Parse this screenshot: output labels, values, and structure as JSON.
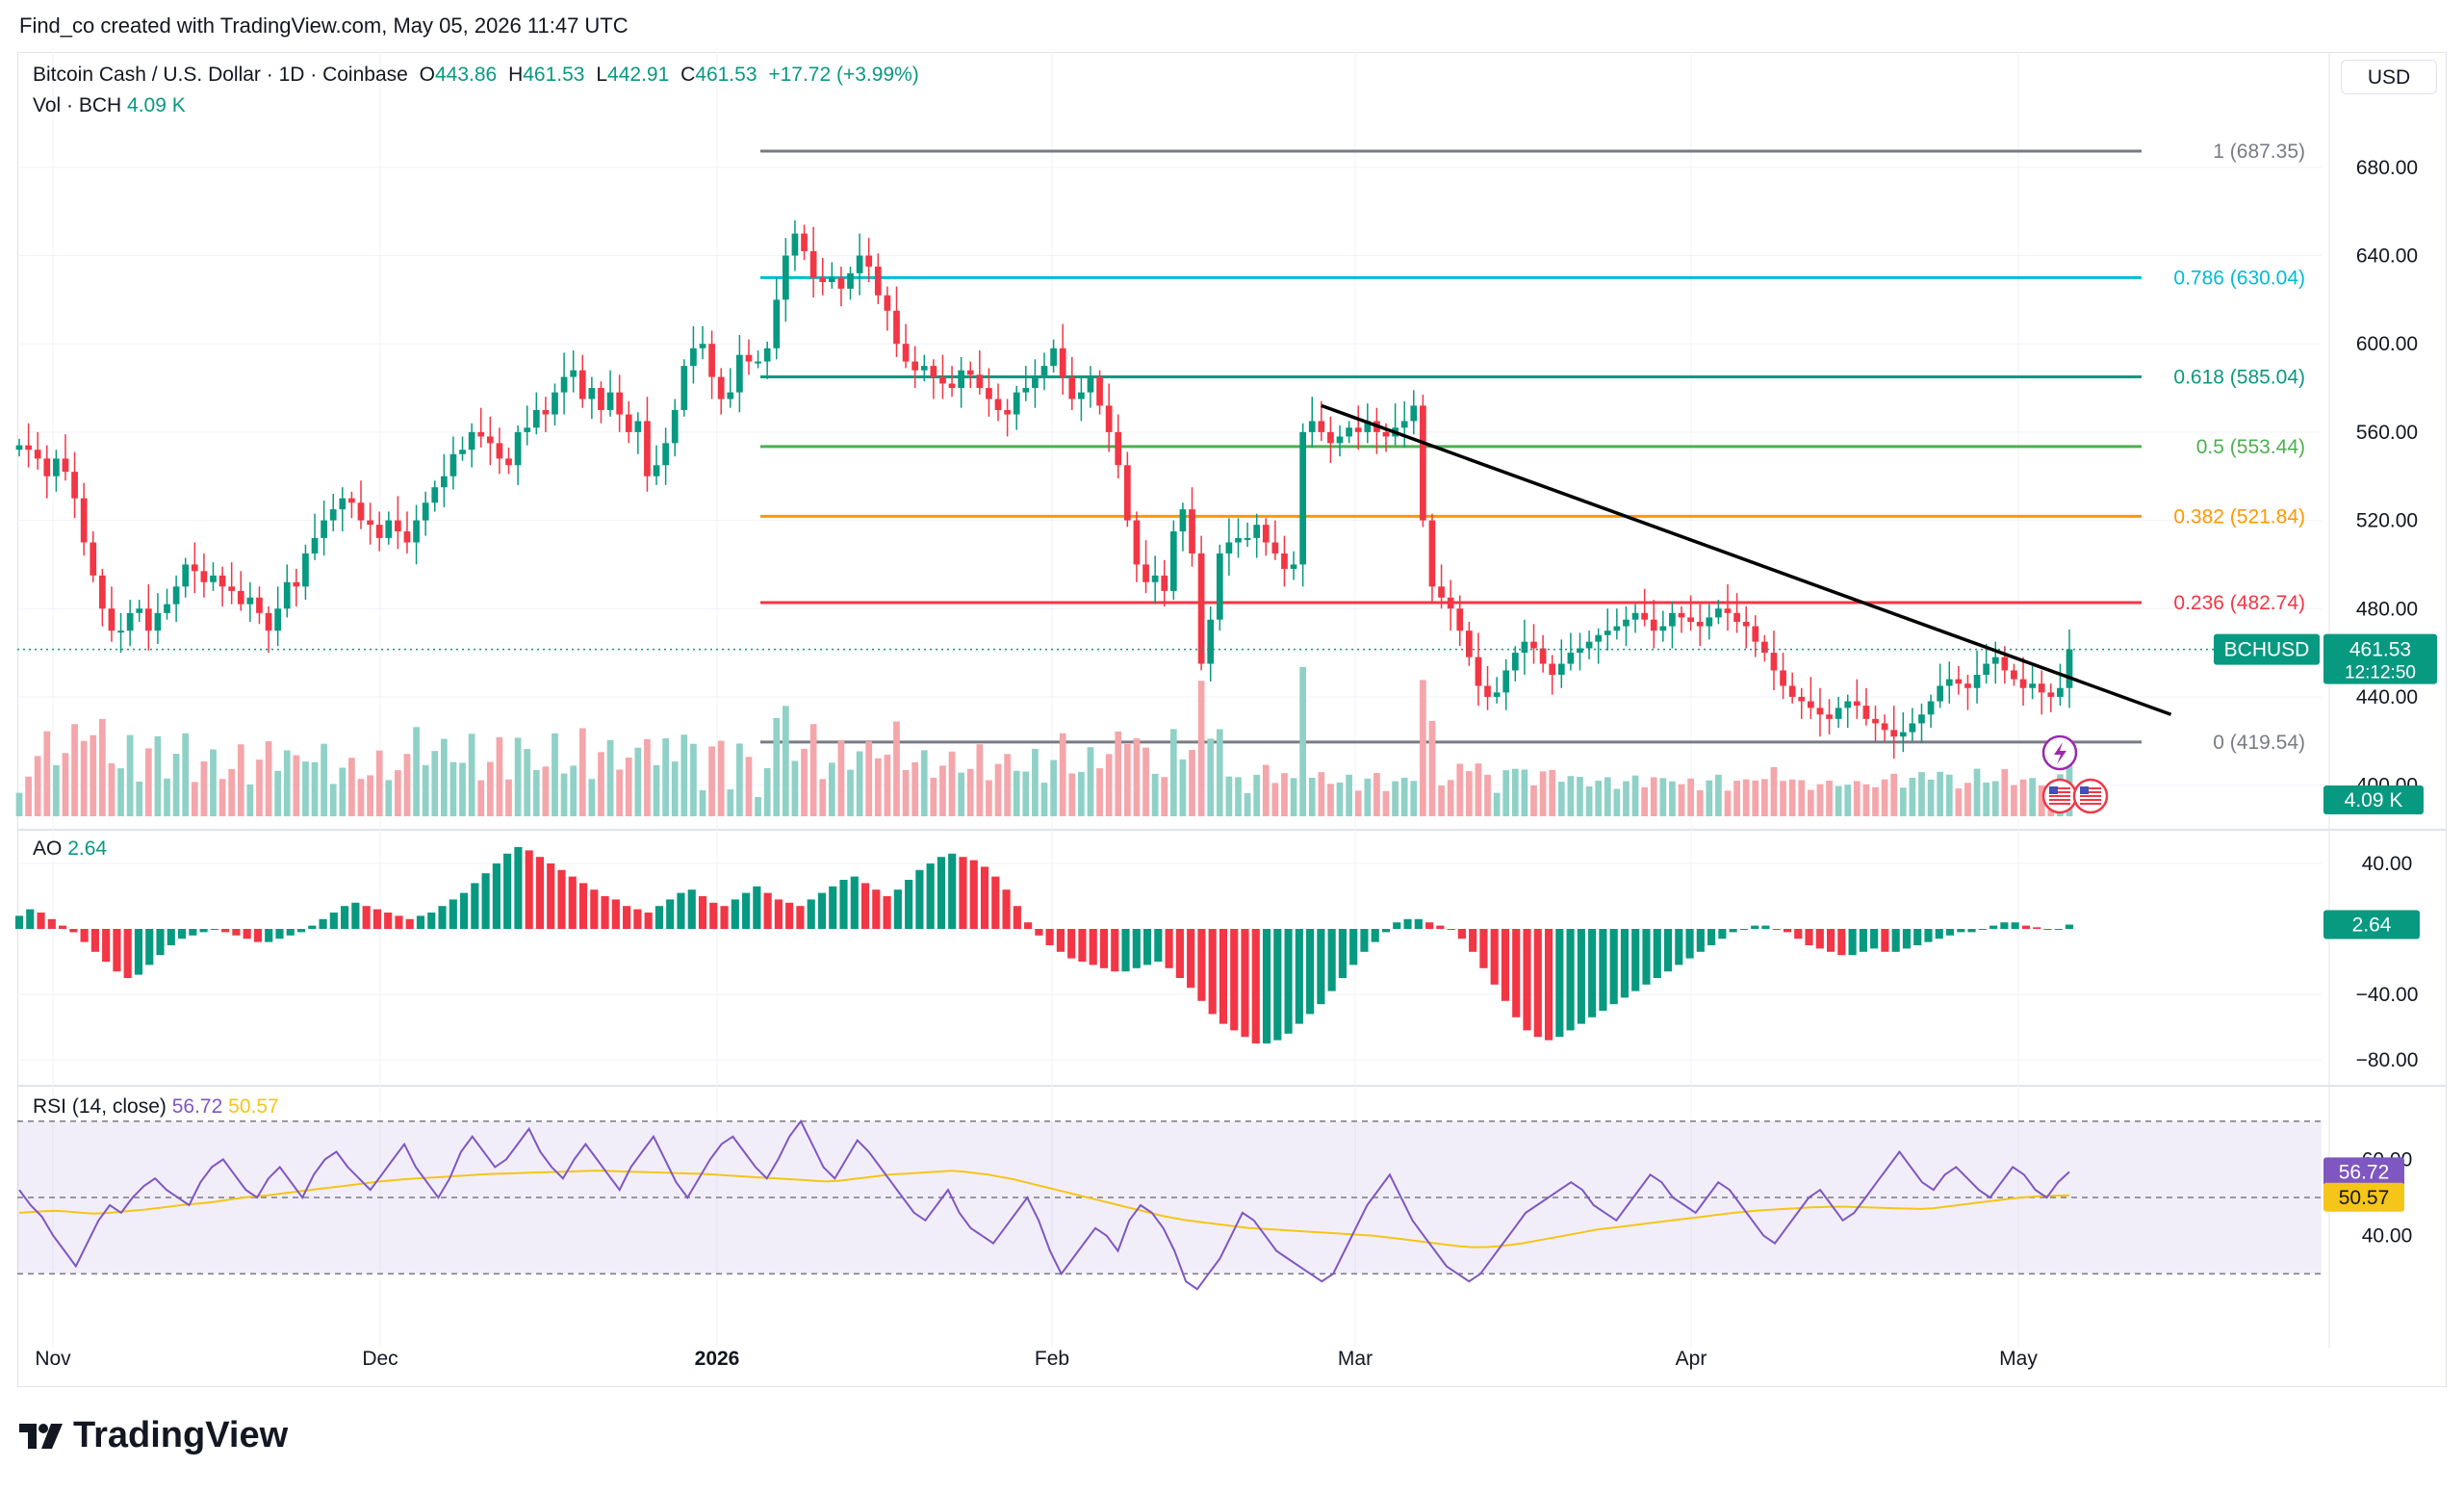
{
  "caption": "Find_co created with TradingView.com, May 05, 2026 11:47 UTC",
  "currency": "USD",
  "brand": "TradingView",
  "legend": {
    "symbol": "Bitcoin Cash / U.S. Dollar · 1D · Coinbase",
    "o_label": "O",
    "o_value": "443.86",
    "h_label": "H",
    "h_value": "461.53",
    "l_label": "L",
    "l_value": "442.91",
    "c_label": "C",
    "c_value": "461.53",
    "change": "+17.72 (+3.99%)",
    "vol_label": "Vol · BCH",
    "vol_value": "4.09 K",
    "ao_label": "AO",
    "ao_value": "2.64",
    "rsi_label": "RSI (14, close)",
    "rsi_value": "56.72",
    "rsi_ma_value": "50.57"
  },
  "price_badge": {
    "symbol": "BCHUSD",
    "price": "461.53",
    "countdown": "12:12:50"
  },
  "volume_badge": "4.09 K",
  "ao_badge": "2.64",
  "rsi_badges": [
    "56.72",
    "50.57"
  ],
  "colors": {
    "up": "#089981",
    "down": "#f23645",
    "vol_up": "#8fd1c6",
    "vol_down": "#f4a6aa",
    "rsi": "#7e57c2",
    "rsi_ma": "#f5c518"
  },
  "chart_data": {
    "type": "candlestick",
    "symbol": "BCHUSD",
    "interval": "1D",
    "exchange": "Coinbase",
    "x_ticks": [
      "Nov",
      "Dec",
      "2026",
      "Feb",
      "Mar",
      "Apr",
      "May"
    ],
    "price_axis": {
      "ticks": [
        "680.00",
        "640.00",
        "600.00",
        "560.00",
        "520.00",
        "480.00",
        "440.00",
        "400.00"
      ],
      "range": [
        385,
        700
      ]
    },
    "ao_axis": {
      "ticks": [
        "40.00",
        "−40.00",
        "−80.00"
      ],
      "range": [
        -90,
        50
      ]
    },
    "rsi_axis": {
      "ticks": [
        "60.00",
        "40.00"
      ],
      "upper_band": 70,
      "middle_band": 50,
      "lower_band": 30
    },
    "fibonacci": [
      {
        "label": "1 (687.35)",
        "value": 687.35,
        "color": "#787b86"
      },
      {
        "label": "0.786 (630.04)",
        "value": 630.04,
        "color": "#00bcd4"
      },
      {
        "label": "0.618 (585.04)",
        "value": 585.04,
        "color": "#089981"
      },
      {
        "label": "0.5 (553.44)",
        "value": 553.44,
        "color": "#4caf50"
      },
      {
        "label": "0.382 (521.84)",
        "value": 521.84,
        "color": "#ff9800"
      },
      {
        "label": "0.236 (482.74)",
        "value": 482.74,
        "color": "#f23645"
      },
      {
        "label": "0 (419.54)",
        "value": 419.54,
        "color": "#787b86"
      }
    ],
    "trendline": {
      "start": {
        "date": "2026-02-23",
        "price": 572
      },
      "end": {
        "date": "2026-05-14",
        "price": 432
      }
    },
    "price_closes": [
      554,
      552,
      548,
      540,
      548,
      542,
      530,
      510,
      495,
      480,
      470,
      470,
      478,
      480,
      470,
      478,
      482,
      490,
      500,
      497,
      492,
      495,
      490,
      488,
      482,
      485,
      478,
      470,
      480,
      492,
      490,
      505,
      512,
      520,
      525,
      530,
      528,
      520,
      518,
      512,
      520,
      515,
      510,
      520,
      528,
      535,
      540,
      550,
      552,
      560,
      558,
      555,
      548,
      545,
      560,
      562,
      570,
      568,
      578,
      585,
      588,
      575,
      580,
      570,
      578,
      568,
      560,
      565,
      540,
      545,
      555,
      570,
      590,
      598,
      600,
      585,
      575,
      578,
      595,
      592,
      592,
      598,
      620,
      640,
      650,
      642,
      630,
      628,
      630,
      625,
      632,
      640,
      635,
      622,
      615,
      600,
      592,
      588,
      590,
      585,
      582,
      580,
      588,
      586,
      580,
      575,
      570,
      568,
      578,
      580,
      585,
      590,
      598,
      585,
      575,
      578,
      585,
      572,
      560,
      545,
      520,
      500,
      492,
      495,
      488,
      515,
      525,
      505,
      455,
      475,
      505,
      510,
      512,
      512,
      518,
      510,
      505,
      498,
      500,
      560,
      565,
      560,
      555,
      558,
      562,
      560,
      565,
      560,
      558,
      562,
      565,
      572,
      520,
      490,
      485,
      480,
      470,
      458,
      445,
      440,
      442,
      452,
      460,
      465,
      462,
      455,
      450,
      455,
      460,
      462,
      465,
      468,
      470,
      472,
      475,
      478,
      475,
      470,
      472,
      478,
      476,
      474,
      472,
      476,
      480,
      478,
      474,
      472,
      465,
      460,
      452,
      445,
      440,
      438,
      435,
      432,
      430,
      435,
      438,
      436,
      430,
      428,
      425,
      422,
      424,
      428,
      432,
      438,
      445,
      448,
      446,
      444,
      450,
      455,
      458,
      452,
      448,
      444,
      446,
      442,
      440,
      444,
      461.53
    ],
    "ao_values": [
      8,
      12,
      10,
      6,
      2,
      -2,
      -8,
      -14,
      -20,
      -26,
      -30,
      -28,
      -22,
      -16,
      -10,
      -6,
      -4,
      -2,
      0,
      -2,
      -4,
      -6,
      -8,
      -8,
      -6,
      -4,
      -2,
      2,
      6,
      10,
      14,
      16,
      14,
      12,
      10,
      8,
      6,
      8,
      10,
      14,
      18,
      22,
      28,
      34,
      40,
      46,
      50,
      48,
      44,
      40,
      36,
      32,
      28,
      24,
      20,
      18,
      14,
      12,
      10,
      14,
      18,
      22,
      24,
      20,
      16,
      14,
      18,
      22,
      26,
      22,
      18,
      16,
      14,
      18,
      22,
      26,
      30,
      32,
      28,
      24,
      20,
      24,
      30,
      36,
      40,
      44,
      46,
      44,
      42,
      38,
      32,
      24,
      14,
      4,
      -4,
      -10,
      -14,
      -18,
      -20,
      -22,
      -24,
      -26,
      -26,
      -24,
      -22,
      -20,
      -24,
      -30,
      -36,
      -44,
      -52,
      -58,
      -62,
      -66,
      -70,
      -70,
      -68,
      -64,
      -58,
      -52,
      -46,
      -38,
      -30,
      -22,
      -14,
      -8,
      -2,
      4,
      6,
      6,
      4,
      2,
      0,
      -6,
      -14,
      -24,
      -34,
      -44,
      -54,
      -62,
      -66,
      -68,
      -66,
      -62,
      -58,
      -54,
      -50,
      -46,
      -42,
      -38,
      -34,
      -30,
      -26,
      -22,
      -18,
      -14,
      -10,
      -6,
      -2,
      0,
      2,
      2,
      0,
      -2,
      -6,
      -10,
      -12,
      -14,
      -16,
      -16,
      -14,
      -12,
      -14,
      -14,
      -12,
      -10,
      -8,
      -6,
      -4,
      -2,
      -2,
      0,
      2,
      4,
      4,
      2,
      1,
      0,
      0,
      2.64
    ],
    "rsi_values": [
      52,
      48,
      45,
      40,
      36,
      32,
      38,
      44,
      48,
      46,
      50,
      53,
      55,
      52,
      50,
      48,
      54,
      58,
      60,
      56,
      52,
      50,
      55,
      58,
      54,
      50,
      56,
      60,
      62,
      58,
      55,
      52,
      56,
      60,
      64,
      58,
      54,
      50,
      55,
      62,
      66,
      62,
      58,
      60,
      64,
      68,
      62,
      58,
      55,
      60,
      64,
      60,
      56,
      52,
      58,
      62,
      66,
      60,
      54,
      50,
      55,
      60,
      64,
      66,
      62,
      58,
      55,
      60,
      66,
      70,
      64,
      58,
      55,
      60,
      65,
      62,
      58,
      54,
      50,
      46,
      44,
      48,
      52,
      46,
      42,
      40,
      38,
      42,
      46,
      50,
      44,
      36,
      30,
      34,
      38,
      42,
      40,
      36,
      44,
      48,
      46,
      42,
      36,
      28,
      26,
      30,
      34,
      40,
      46,
      44,
      40,
      36,
      34,
      32,
      30,
      28,
      30,
      36,
      42,
      48,
      52,
      56,
      50,
      44,
      40,
      36,
      32,
      30,
      28,
      30,
      34,
      38,
      42,
      46,
      48,
      50,
      52,
      54,
      52,
      48,
      46,
      44,
      48,
      52,
      56,
      54,
      50,
      48,
      46,
      50,
      54,
      52,
      48,
      44,
      40,
      38,
      42,
      46,
      50,
      52,
      48,
      44,
      46,
      50,
      54,
      58,
      62,
      58,
      54,
      52,
      56,
      58,
      55,
      52,
      50,
      54,
      58,
      56,
      52,
      50,
      54,
      56.72
    ],
    "rsi_ma_values": [
      46,
      46.2,
      46.4,
      46.5,
      46.3,
      46,
      45.8,
      45.9,
      46.2,
      46.5,
      46.8,
      47.2,
      47.6,
      48,
      48.3,
      48.6,
      49,
      49.5,
      50,
      50.3,
      50.6,
      51,
      51.4,
      51.8,
      52.2,
      52.6,
      53,
      53.4,
      53.8,
      54.2,
      54.5,
      54.8,
      55,
      55.2,
      55.4,
      55.6,
      55.8,
      56,
      56.2,
      56.3,
      56.4,
      56.5,
      56.6,
      56.7,
      56.8,
      56.9,
      57,
      57,
      56.9,
      56.8,
      56.7,
      56.6,
      56.5,
      56.4,
      56.3,
      56.2,
      56,
      55.8,
      55.6,
      55.4,
      55.2,
      55,
      54.8,
      54.6,
      54.4,
      54.2,
      54.4,
      54.8,
      55.2,
      55.6,
      56,
      56.2,
      56.4,
      56.6,
      56.8,
      57,
      56.8,
      56.4,
      56,
      55.4,
      54.8,
      54,
      53.2,
      52.4,
      51.6,
      50.8,
      50,
      49.2,
      48.4,
      47.6,
      46.8,
      46,
      45.2,
      44.6,
      44,
      43.6,
      43.2,
      42.8,
      42.4,
      42,
      41.8,
      41.6,
      41.4,
      41.2,
      41,
      40.8,
      40.6,
      40.4,
      40.2,
      40,
      39.6,
      39.2,
      38.8,
      38.4,
      38,
      37.6,
      37.2,
      37,
      37,
      37.2,
      37.6,
      38,
      38.6,
      39.2,
      39.8,
      40.4,
      41,
      41.6,
      42,
      42.4,
      42.8,
      43.2,
      43.6,
      44,
      44.4,
      44.8,
      45.2,
      45.6,
      46,
      46.3,
      46.6,
      46.8,
      47,
      47.2,
      47.4,
      47.5,
      47.6,
      47.6,
      47.5,
      47.4,
      47.3,
      47.2,
      47.1,
      47,
      47.2,
      47.6,
      48,
      48.4,
      48.8,
      49.2,
      49.6,
      50,
      50.2,
      50.4,
      50.5,
      50.57
    ]
  }
}
